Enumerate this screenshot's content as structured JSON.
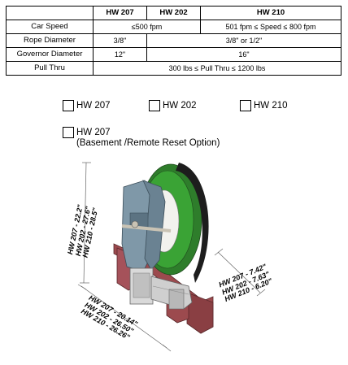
{
  "table": {
    "header": {
      "blank": "",
      "c1": "HW 207",
      "c2": "HW 202",
      "c3": "HW 210"
    },
    "car_speed": {
      "label": "Car Speed",
      "v1": "≤500 fpm",
      "v2": "501 fpm ≤ Speed ≤ 800 fpm"
    },
    "rope_diameter": {
      "label": "Rope Diameter",
      "v1": "3/8\"",
      "v2": "3/8\" or 1/2\""
    },
    "governor_diameter": {
      "label": "Governor Diameter",
      "v1": "12\"",
      "v2": "16\""
    },
    "pull_thru": {
      "label": "Pull Thru",
      "v1": "300 lbs ≤ Pull Thru ≤ 1200 lbs"
    }
  },
  "options": {
    "hw207": "HW 207",
    "hw202": "HW 202",
    "hw210": "HW 210",
    "hw207_basement": "HW 207",
    "hw207_basement_sub": "(Basement /Remote Reset Option)"
  },
  "dimensions": {
    "height": {
      "l1": "HW 207 - 22.2\"",
      "l2": "HW 202 - 27.6\"",
      "l3": "HW 210 - 28.5\""
    },
    "width": {
      "l1": "HW 207 - 7.42\"",
      "l2": "HW 202 - 7.63\"",
      "l3": "HW 210 - 6.20\""
    },
    "length": {
      "l1": "HW 207 - 20.14\"",
      "l2": "HW 202 - 26.50\"",
      "l3": "HW 210 - 26.26\""
    }
  },
  "colors": {
    "sheave": "#3aa335",
    "body": "#7f98a8",
    "base": "#9c4a4e",
    "shaft": "#c9c3b4"
  }
}
